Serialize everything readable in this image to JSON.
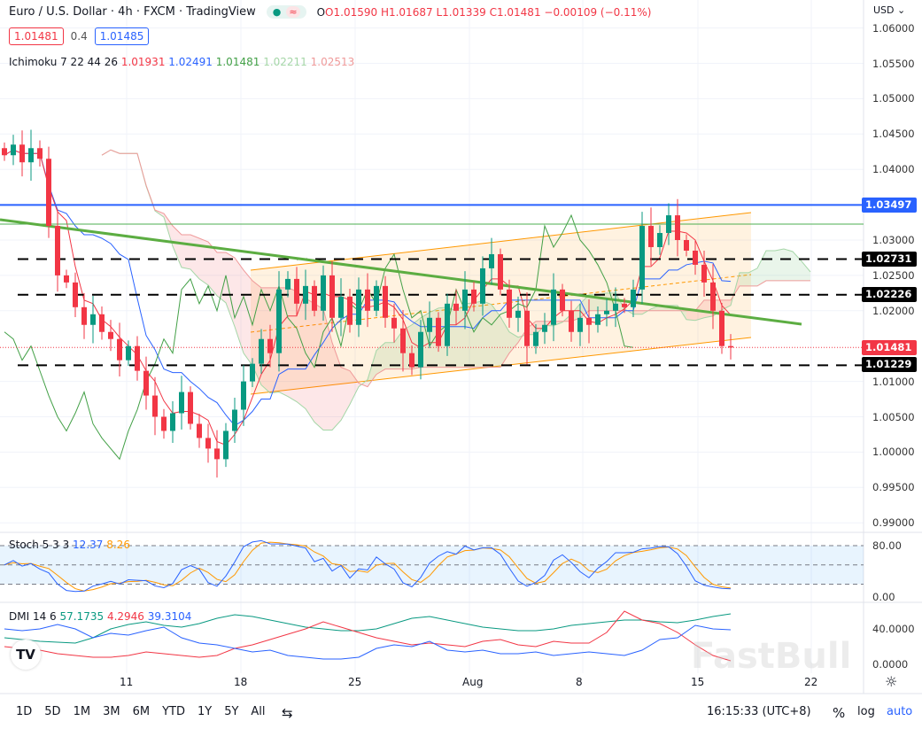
{
  "header": {
    "symbol": "Euro / U.S. Dollar · 4h · FXCM · TradingView",
    "open": "O1.01590",
    "high": "H1.01687",
    "low": "L1.01339",
    "close": "C1.01481",
    "change": "−0.00109 (−0.11%)",
    "bid": "1.01481",
    "spread": "0.4",
    "ask": "1.01485",
    "currency": "USD ⌄"
  },
  "ichimoku": {
    "label": "Ichimoku 7 22 44 26",
    "v1": "1.01931",
    "v2": "1.02491",
    "v3": "1.01481",
    "v4": "1.02211",
    "v5": "1.02513"
  },
  "stoch": {
    "label": "Stoch 5 3 3",
    "k": "12.37",
    "d": "8.26",
    "ticks": [
      "80.00",
      "0.00"
    ]
  },
  "dmi": {
    "label": "DMI 14 6",
    "adx": "57.1735",
    "minus": "4.2946",
    "plus": "39.3104",
    "ticks": [
      "40.0000",
      "0.0000"
    ]
  },
  "price_ticks": [
    "1.06000",
    "1.05500",
    "1.05000",
    "1.04500",
    "1.04000",
    "1.03000",
    "1.02500",
    "1.02000",
    "1.01000",
    "1.00500",
    "1.00000",
    "0.99500",
    "0.99000"
  ],
  "tags": {
    "blue_level": "1.03497",
    "r1": "1.02731",
    "r2": "1.02226",
    "last": "1.01481",
    "s1": "1.01229"
  },
  "time_ticks": [
    "11",
    "18",
    "25",
    "Aug",
    "8",
    "15",
    "22"
  ],
  "ranges": [
    "1D",
    "5D",
    "1M",
    "3M",
    "6M",
    "YTD",
    "1Y",
    "5Y",
    "All"
  ],
  "footer": {
    "clock": "16:15:33 (UTC+8)",
    "percent": "%",
    "log": "log",
    "auto": "auto"
  },
  "watermark": "FastBull",
  "colors": {
    "up": "#089981",
    "down": "#f23645",
    "blue": "#2962ff",
    "green": "#4caf50",
    "orange": "#ff9800"
  },
  "chart_data": {
    "type": "candlestick",
    "title": "Euro / U.S. Dollar 4h",
    "ylim": [
      0.99,
      1.06
    ],
    "closes": [
      1.042,
      1.0435,
      1.041,
      1.043,
      1.0415,
      1.032,
      1.025,
      1.024,
      1.0205,
      1.018,
      1.0195,
      1.017,
      1.016,
      1.013,
      1.015,
      1.0115,
      1.008,
      1.005,
      1.003,
      1.0055,
      1.0085,
      1.004,
      1.002,
      1.0005,
      0.999,
      1.003,
      1.006,
      1.01,
      1.0125,
      1.016,
      1.014,
      1.023,
      1.0245,
      1.021,
      1.0235,
      1.02,
      1.025,
      1.019,
      1.022,
      1.018,
      1.023,
      1.02,
      1.0235,
      1.019,
      1.0175,
      1.014,
      1.012,
      1.017,
      1.019,
      1.015,
      1.021,
      1.02,
      1.023,
      1.021,
      1.026,
      1.028,
      1.023,
      1.019,
      1.02,
      1.015,
      1.017,
      1.018,
      1.023,
      1.02,
      1.017,
      1.019,
      1.018,
      1.0195,
      1.02,
      1.021,
      1.0205,
      1.023,
      1.032,
      1.029,
      1.031,
      1.0335,
      1.03,
      1.0285,
      1.0265,
      1.024,
      1.02,
      1.015,
      1.0148
    ],
    "levels": [
      1.03497,
      1.02731,
      1.02226,
      1.01229
    ],
    "dmi_adx": [
      30,
      28,
      26,
      25,
      24,
      30,
      40,
      45,
      48,
      44,
      42,
      46,
      52,
      56,
      54,
      50,
      46,
      42,
      40,
      38,
      38,
      40,
      46,
      52,
      54,
      50,
      46,
      42,
      40,
      38,
      38,
      40,
      44,
      46,
      48,
      50,
      50,
      48,
      47,
      50,
      54,
      57
    ],
    "dmi_minus": [
      20,
      18,
      16,
      12,
      10,
      8,
      8,
      10,
      14,
      12,
      10,
      8,
      10,
      18,
      22,
      28,
      34,
      40,
      48,
      42,
      36,
      30,
      26,
      22,
      24,
      22,
      20,
      26,
      28,
      22,
      20,
      26,
      24,
      24,
      36,
      60,
      50,
      46,
      36,
      22,
      10,
      4
    ],
    "dmi_plus": [
      40,
      38,
      40,
      45,
      40,
      30,
      35,
      33,
      38,
      42,
      30,
      24,
      22,
      18,
      14,
      16,
      10,
      8,
      6,
      6,
      8,
      18,
      22,
      20,
      26,
      16,
      14,
      16,
      12,
      12,
      14,
      10,
      12,
      14,
      12,
      10,
      16,
      28,
      30,
      44,
      40,
      39
    ]
  }
}
